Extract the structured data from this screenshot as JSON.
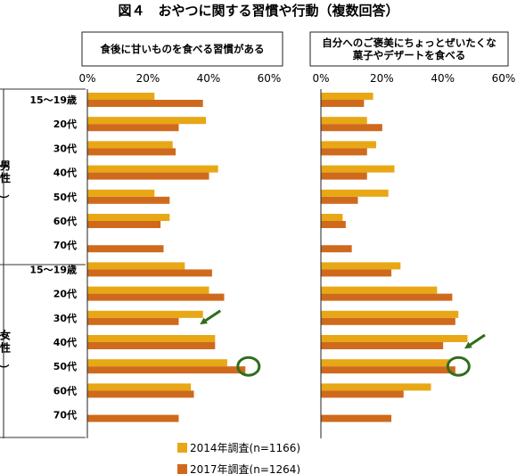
{
  "chart_data": {
    "type": "bar",
    "orientation": "horizontal",
    "title": "図４　おやつに関する習慣や行動（複数回答）",
    "categories": [
      "15〜19歳",
      "20代",
      "30代",
      "40代",
      "50代",
      "60代",
      "70代",
      "15〜19歳",
      "20代",
      "30代",
      "40代",
      "50代",
      "60代",
      "70代"
    ],
    "groups": [
      {
        "label": "（男性）",
        "text": "（男性）"
      },
      {
        "label": "（女性）",
        "text": "（女性）"
      }
    ],
    "xlim": [
      0,
      60
    ],
    "xticks": [
      "0%",
      "20%",
      "40%",
      "60%"
    ],
    "legend_position": "bottom-center",
    "colors": {
      "s2014": "#e8a715",
      "s2017": "#cf6a1d",
      "annot": "#2f6d1c"
    },
    "panels": [
      {
        "title": "食後に甘いものを食べる習慣がある",
        "series": [
          {
            "name": "2014年調査(n=1166)",
            "values": [
              22,
              39,
              28,
              43,
              22,
              27,
              null,
              32,
              40,
              38,
              42,
              46,
              34,
              null
            ]
          },
          {
            "name": "2017年調査(n=1264)",
            "values": [
              38,
              30,
              29,
              40,
              27,
              24,
              25,
              41,
              45,
              30,
              42,
              52,
              35,
              30
            ]
          }
        ],
        "annotations": [
          {
            "type": "arrow",
            "category_index": 9
          },
          {
            "type": "circle",
            "category_index": 11
          }
        ]
      },
      {
        "title": "自分へのご褒美にちょっとぜいたくな\n菓子やデザートを食べる",
        "series": [
          {
            "name": "2014年調査(n=1166)",
            "values": [
              17,
              15,
              18,
              24,
              22,
              7,
              null,
              26,
              38,
              45,
              48,
              42,
              36,
              null
            ]
          },
          {
            "name": "2017年調査(n=1264)",
            "values": [
              14,
              20,
              15,
              15,
              12,
              8,
              10,
              23,
              43,
              44,
              40,
              44,
              27,
              23
            ]
          }
        ],
        "annotations": [
          {
            "type": "arrow",
            "category_index": 10
          },
          {
            "type": "circle",
            "category_index": 11
          }
        ]
      }
    ]
  }
}
